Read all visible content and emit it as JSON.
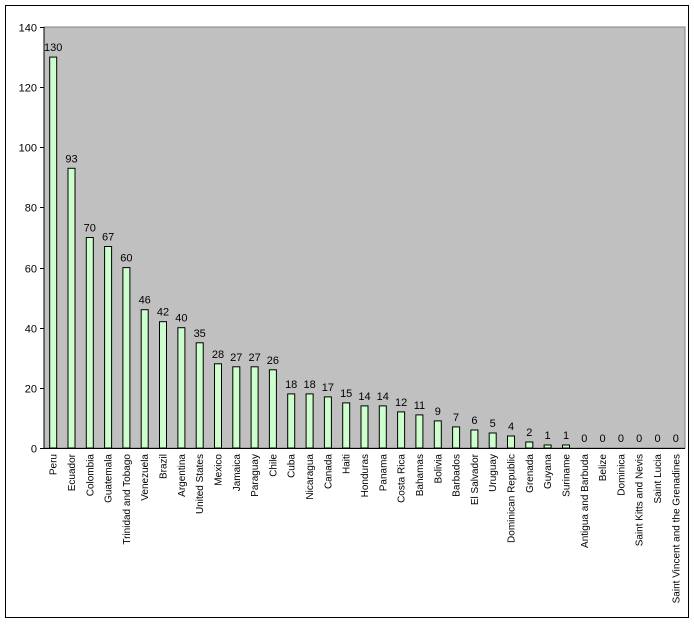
{
  "chart_data": {
    "type": "bar",
    "categories": [
      "Peru",
      "Ecuador",
      "Colombia",
      "Guatemala",
      "Trinidad and Tobago",
      "Venezuela",
      "Brazil",
      "Argentina",
      "United States",
      "Mexico",
      "Jamaica",
      "Paraguay",
      "Chile",
      "Cuba",
      "Nicaragua",
      "Canada",
      "Haiti",
      "Honduras",
      "Panama",
      "Costa Rica",
      "Bahamas",
      "Bolivia",
      "Barbados",
      "El Salvador",
      "Uruguay",
      "Dominican Republic",
      "Grenada",
      "Guyana",
      "Suriname",
      "Antigua and Barbuda",
      "Belize",
      "Dominica",
      "Saint Kitts and Nevis",
      "Saint Lucia",
      "Saint Vincent and the Grenadines"
    ],
    "values": [
      130,
      93,
      70,
      67,
      60,
      46,
      42,
      40,
      35,
      28,
      27,
      27,
      26,
      18,
      18,
      17,
      15,
      14,
      14,
      12,
      11,
      9,
      7,
      6,
      5,
      4,
      2,
      1,
      1,
      0,
      0,
      0,
      0,
      0,
      0
    ],
    "title": "",
    "xlabel": "",
    "ylabel": "",
    "ylim": [
      0,
      140
    ],
    "yticks": [
      0,
      20,
      40,
      60,
      80,
      100,
      120,
      140
    ],
    "grid": false,
    "legend": "none",
    "colors": {
      "plot_background": "#c0c0c0",
      "bar_fill": "#ccffcc",
      "bar_stroke": "#000000"
    }
  }
}
